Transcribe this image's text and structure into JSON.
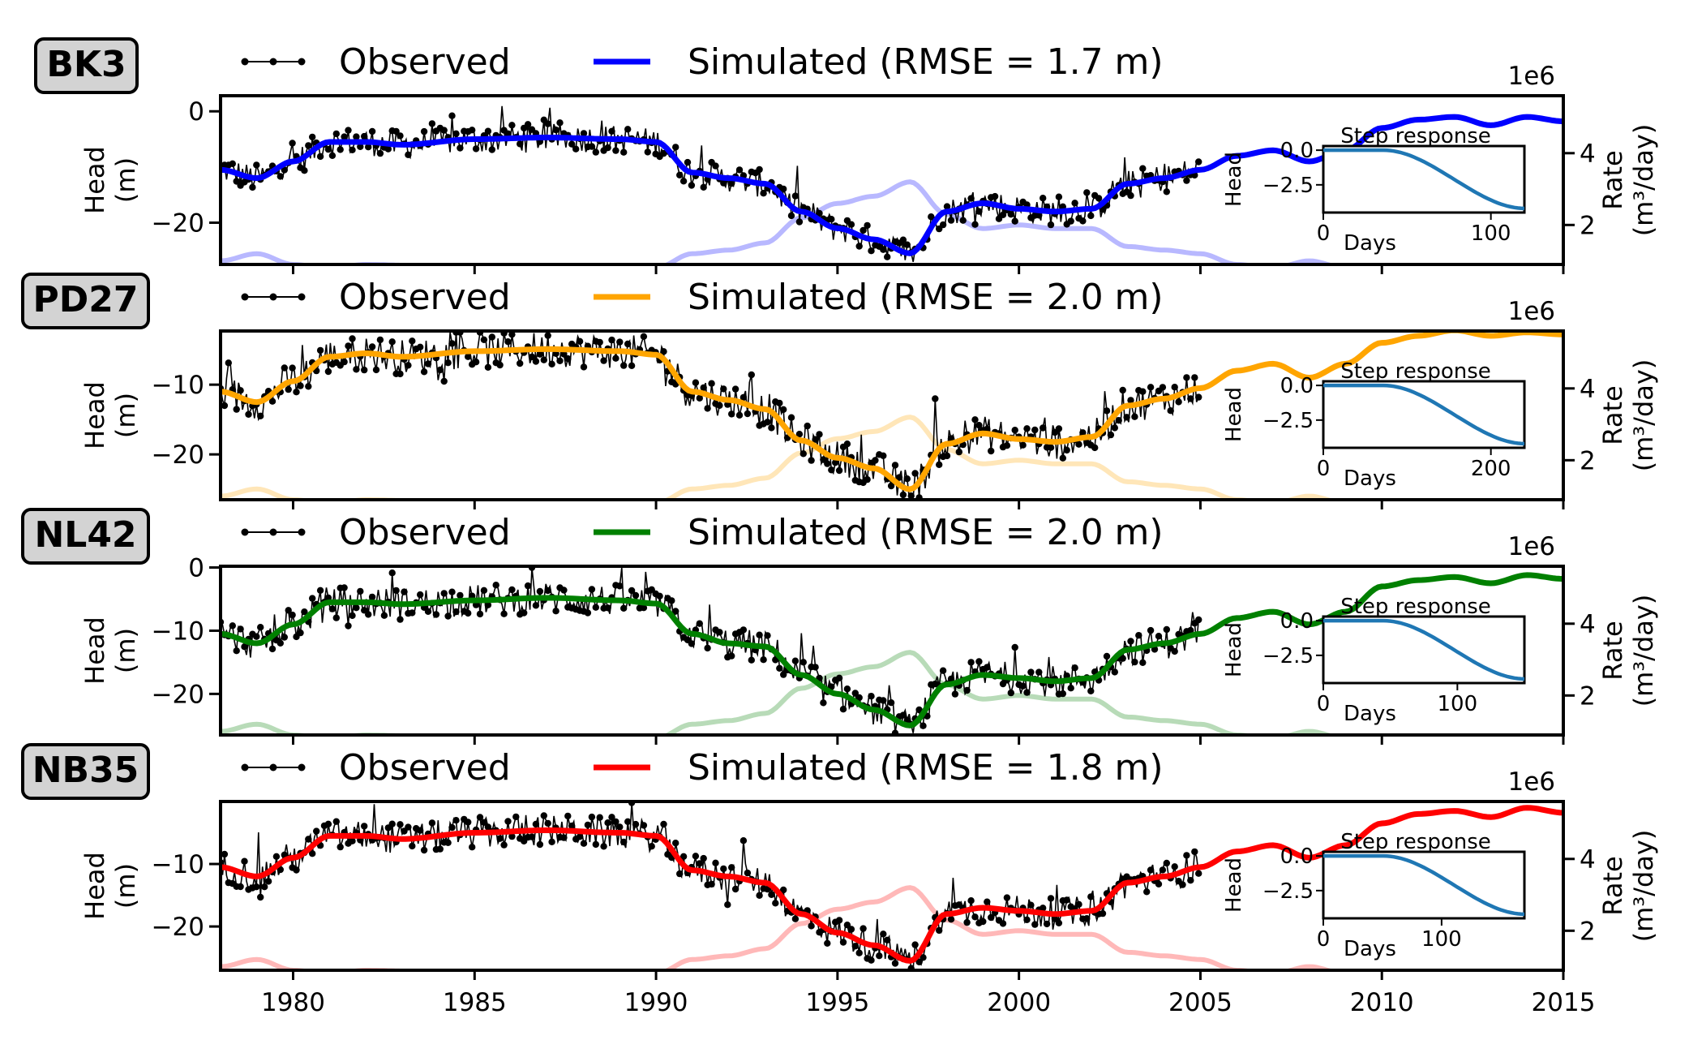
{
  "colors": {
    "observed": "#000000",
    "inset_line": "#1f77b4",
    "badge_fill": "#d3d3d3"
  },
  "legend": {
    "observed_label": "Observed"
  },
  "axes_text": {
    "head_label_line1": "Head",
    "head_label_line2": "(m)",
    "rate_label": "Rate",
    "rate_unit": "(m³/day)",
    "rate_multiplier": "1e6",
    "inset_title": "Step response",
    "inset_ylabel": "Head",
    "inset_xlabel": "Days"
  },
  "chart_data": [
    {
      "type": "line",
      "well": "BK3",
      "color": "#0000ff",
      "rmse_label": "Simulated (RMSE = 1.7 m)",
      "xlim": [
        1978,
        2015
      ],
      "ylim": [
        -27.5,
        2.8
      ],
      "yticks": [
        {
          "v": 0,
          "label": "0"
        },
        {
          "v": -20,
          "label": "−20"
        }
      ],
      "rate_lim": [
        0.9,
        5.6
      ],
      "rate_ticks": [
        2,
        4
      ],
      "simulated": [
        [
          1978,
          -10.5
        ],
        [
          1979,
          -12
        ],
        [
          1980,
          -9
        ],
        [
          1981,
          -5.5
        ],
        [
          1982,
          -5.5
        ],
        [
          1983,
          -6
        ],
        [
          1985,
          -5
        ],
        [
          1987,
          -4.7
        ],
        [
          1989,
          -5
        ],
        [
          1990,
          -5.5
        ],
        [
          1991,
          -11
        ],
        [
          1992,
          -12
        ],
        [
          1993,
          -13
        ],
        [
          1994,
          -18
        ],
        [
          1995,
          -21
        ],
        [
          1996,
          -23
        ],
        [
          1997,
          -25.5
        ],
        [
          1998,
          -18
        ],
        [
          1999,
          -16.5
        ],
        [
          2000,
          -17.5
        ],
        [
          2001,
          -18
        ],
        [
          2002,
          -17.5
        ],
        [
          2003,
          -13
        ],
        [
          2004,
          -12
        ],
        [
          2005,
          -10.5
        ],
        [
          2006,
          -8
        ],
        [
          2007,
          -7
        ],
        [
          2008,
          -9
        ],
        [
          2009,
          -7
        ],
        [
          2010,
          -3
        ],
        [
          2011,
          -1.5
        ],
        [
          2012,
          -1
        ],
        [
          2013,
          -2.5
        ],
        [
          2014,
          -1
        ],
        [
          2015,
          -1.8
        ]
      ],
      "rate": [
        [
          1978,
          1.0
        ],
        [
          1979,
          1.2
        ],
        [
          1980,
          0.9
        ],
        [
          1981,
          0.8
        ],
        [
          1982,
          0.9
        ],
        [
          1984,
          0.85
        ],
        [
          1986,
          0.8
        ],
        [
          1988,
          0.85
        ],
        [
          1990,
          0.8
        ],
        [
          1991,
          1.2
        ],
        [
          1992,
          1.3
        ],
        [
          1993,
          1.5
        ],
        [
          1994,
          2.2
        ],
        [
          1995,
          2.6
        ],
        [
          1996,
          2.8
        ],
        [
          1997,
          3.2
        ],
        [
          1998,
          2.3
        ],
        [
          1999,
          1.9
        ],
        [
          2000,
          2.0
        ],
        [
          2001,
          1.9
        ],
        [
          2002,
          1.9
        ],
        [
          2003,
          1.4
        ],
        [
          2004,
          1.3
        ],
        [
          2005,
          1.2
        ],
        [
          2006,
          0.9
        ],
        [
          2007,
          0.8
        ],
        [
          2008,
          1.0
        ],
        [
          2009,
          0.8
        ],
        [
          2010,
          0.5
        ],
        [
          2011,
          0.5
        ],
        [
          2012,
          0.6
        ],
        [
          2013,
          0.5
        ],
        [
          2014,
          0.4
        ],
        [
          2015,
          0.5
        ]
      ],
      "inset": {
        "xmax": 120,
        "xticks": [
          {
            "v": 0,
            "label": "0"
          },
          {
            "v": 100,
            "label": "100"
          }
        ],
        "yticks": [
          {
            "v": 0,
            "label": "0.0"
          },
          {
            "v": -2.5,
            "label": "−2.5"
          }
        ],
        "ymin": -4.5,
        "ymax": 0.3,
        "final": -4.2
      }
    },
    {
      "type": "line",
      "well": "PD27",
      "color": "#ffa500",
      "rmse_label": "Simulated (RMSE = 2.0 m)",
      "xlim": [
        1978,
        2015
      ],
      "ylim": [
        -26.5,
        -2.3
      ],
      "yticks": [
        {
          "v": -10,
          "label": "−10"
        },
        {
          "v": -20,
          "label": "−20"
        }
      ],
      "rate_lim": [
        0.9,
        5.6
      ],
      "rate_ticks": [
        2,
        4
      ],
      "simulated": [
        [
          1978,
          -11
        ],
        [
          1979,
          -12.5
        ],
        [
          1980,
          -9.5
        ],
        [
          1981,
          -6
        ],
        [
          1982,
          -5.5
        ],
        [
          1983,
          -6
        ],
        [
          1985,
          -5.2
        ],
        [
          1987,
          -4.9
        ],
        [
          1989,
          -5.2
        ],
        [
          1990,
          -5.7
        ],
        [
          1991,
          -11
        ],
        [
          1992,
          -12.2
        ],
        [
          1993,
          -13.5
        ],
        [
          1994,
          -18
        ],
        [
          1995,
          -20.5
        ],
        [
          1996,
          -22
        ],
        [
          1997,
          -25
        ],
        [
          1998,
          -18.5
        ],
        [
          1999,
          -17
        ],
        [
          2000,
          -17.8
        ],
        [
          2001,
          -18.2
        ],
        [
          2002,
          -17.5
        ],
        [
          2003,
          -13
        ],
        [
          2004,
          -12
        ],
        [
          2005,
          -10.5
        ],
        [
          2006,
          -8
        ],
        [
          2007,
          -7
        ],
        [
          2008,
          -9
        ],
        [
          2009,
          -7
        ],
        [
          2010,
          -4
        ],
        [
          2011,
          -3
        ],
        [
          2012,
          -2.2
        ],
        [
          2013,
          -3
        ],
        [
          2014,
          -2.5
        ],
        [
          2015,
          -2.8
        ]
      ],
      "rate": [
        [
          1978,
          1.0
        ],
        [
          1979,
          1.2
        ],
        [
          1980,
          0.9
        ],
        [
          1981,
          0.8
        ],
        [
          1982,
          0.9
        ],
        [
          1984,
          0.85
        ],
        [
          1986,
          0.8
        ],
        [
          1988,
          0.85
        ],
        [
          1990,
          0.8
        ],
        [
          1991,
          1.2
        ],
        [
          1992,
          1.3
        ],
        [
          1993,
          1.5
        ],
        [
          1994,
          2.2
        ],
        [
          1995,
          2.6
        ],
        [
          1996,
          2.8
        ],
        [
          1997,
          3.2
        ],
        [
          1998,
          2.3
        ],
        [
          1999,
          1.9
        ],
        [
          2000,
          2.0
        ],
        [
          2001,
          1.9
        ],
        [
          2002,
          1.9
        ],
        [
          2003,
          1.4
        ],
        [
          2004,
          1.3
        ],
        [
          2005,
          1.2
        ],
        [
          2006,
          0.9
        ],
        [
          2007,
          0.8
        ],
        [
          2008,
          1.0
        ],
        [
          2009,
          0.8
        ],
        [
          2010,
          0.5
        ],
        [
          2011,
          0.5
        ],
        [
          2012,
          0.6
        ],
        [
          2013,
          0.5
        ],
        [
          2014,
          0.4
        ],
        [
          2015,
          0.5
        ]
      ],
      "inset": {
        "xmax": 240,
        "xticks": [
          {
            "v": 0,
            "label": "0"
          },
          {
            "v": 200,
            "label": "200"
          }
        ],
        "yticks": [
          {
            "v": 0,
            "label": "0.0"
          },
          {
            "v": -2.5,
            "label": "−2.5"
          }
        ],
        "ymin": -4.5,
        "ymax": 0.3,
        "final": -4.2
      }
    },
    {
      "type": "line",
      "well": "NL42",
      "color": "#008000",
      "rmse_label": "Simulated (RMSE = 2.0 m)",
      "xlim": [
        1978,
        2015
      ],
      "ylim": [
        -26.5,
        0.2
      ],
      "yticks": [
        {
          "v": 0,
          "label": "0"
        },
        {
          "v": -10,
          "label": "−10"
        },
        {
          "v": -20,
          "label": "−20"
        }
      ],
      "rate_lim": [
        0.9,
        5.6
      ],
      "rate_ticks": [
        2,
        4
      ],
      "simulated": [
        [
          1978,
          -10.5
        ],
        [
          1979,
          -12
        ],
        [
          1980,
          -9
        ],
        [
          1981,
          -5.5
        ],
        [
          1982,
          -5.5
        ],
        [
          1983,
          -5.8
        ],
        [
          1985,
          -5.2
        ],
        [
          1987,
          -4.8
        ],
        [
          1989,
          -5.2
        ],
        [
          1990,
          -5.7
        ],
        [
          1991,
          -10.5
        ],
        [
          1992,
          -12
        ],
        [
          1993,
          -12.5
        ],
        [
          1994,
          -17
        ],
        [
          1995,
          -20
        ],
        [
          1996,
          -22.5
        ],
        [
          1997,
          -25
        ],
        [
          1998,
          -18.5
        ],
        [
          1999,
          -17
        ],
        [
          2000,
          -17.5
        ],
        [
          2001,
          -18
        ],
        [
          2002,
          -17.5
        ],
        [
          2003,
          -13
        ],
        [
          2004,
          -12
        ],
        [
          2005,
          -10.5
        ],
        [
          2006,
          -8
        ],
        [
          2007,
          -7
        ],
        [
          2008,
          -9
        ],
        [
          2009,
          -7
        ],
        [
          2010,
          -3
        ],
        [
          2011,
          -2
        ],
        [
          2012,
          -1.5
        ],
        [
          2013,
          -2.5
        ],
        [
          2014,
          -1.2
        ],
        [
          2015,
          -1.8
        ]
      ],
      "rate": [
        [
          1978,
          1.0
        ],
        [
          1979,
          1.2
        ],
        [
          1980,
          0.9
        ],
        [
          1981,
          0.8
        ],
        [
          1982,
          0.9
        ],
        [
          1984,
          0.85
        ],
        [
          1986,
          0.8
        ],
        [
          1988,
          0.85
        ],
        [
          1990,
          0.8
        ],
        [
          1991,
          1.2
        ],
        [
          1992,
          1.3
        ],
        [
          1993,
          1.5
        ],
        [
          1994,
          2.2
        ],
        [
          1995,
          2.6
        ],
        [
          1996,
          2.8
        ],
        [
          1997,
          3.2
        ],
        [
          1998,
          2.3
        ],
        [
          1999,
          1.9
        ],
        [
          2000,
          2.0
        ],
        [
          2001,
          1.9
        ],
        [
          2002,
          1.9
        ],
        [
          2003,
          1.4
        ],
        [
          2004,
          1.3
        ],
        [
          2005,
          1.2
        ],
        [
          2006,
          0.9
        ],
        [
          2007,
          0.8
        ],
        [
          2008,
          1.0
        ],
        [
          2009,
          0.8
        ],
        [
          2010,
          0.5
        ],
        [
          2011,
          0.5
        ],
        [
          2012,
          0.6
        ],
        [
          2013,
          0.5
        ],
        [
          2014,
          0.4
        ],
        [
          2015,
          0.5
        ]
      ],
      "inset": {
        "xmax": 150,
        "xticks": [
          {
            "v": 0,
            "label": "0"
          },
          {
            "v": 100,
            "label": "100"
          }
        ],
        "yticks": [
          {
            "v": 0,
            "label": "0.0"
          },
          {
            "v": -2.5,
            "label": "−2.5"
          }
        ],
        "ymin": -4.5,
        "ymax": 0.3,
        "final": -4.2
      }
    },
    {
      "type": "line",
      "well": "NB35",
      "color": "#ff0000",
      "rmse_label": "Simulated (RMSE = 1.8 m)",
      "xlim": [
        1978,
        2015
      ],
      "ylim": [
        -27.0,
        0.0
      ],
      "yticks": [
        {
          "v": -10,
          "label": "−10"
        },
        {
          "v": -20,
          "label": "−20"
        }
      ],
      "rate_lim": [
        0.9,
        5.6
      ],
      "rate_ticks": [
        2,
        4
      ],
      "simulated": [
        [
          1978,
          -10.5
        ],
        [
          1979,
          -12
        ],
        [
          1980,
          -9
        ],
        [
          1981,
          -5.5
        ],
        [
          1982,
          -5.5
        ],
        [
          1983,
          -6
        ],
        [
          1985,
          -5
        ],
        [
          1987,
          -4.6
        ],
        [
          1989,
          -5
        ],
        [
          1990,
          -5.5
        ],
        [
          1991,
          -11
        ],
        [
          1992,
          -12
        ],
        [
          1993,
          -13
        ],
        [
          1994,
          -18
        ],
        [
          1995,
          -21
        ],
        [
          1996,
          -23
        ],
        [
          1997,
          -25.5
        ],
        [
          1998,
          -18
        ],
        [
          1999,
          -17
        ],
        [
          2000,
          -17.5
        ],
        [
          2001,
          -18
        ],
        [
          2002,
          -17.5
        ],
        [
          2003,
          -13
        ],
        [
          2004,
          -12
        ],
        [
          2005,
          -10.5
        ],
        [
          2006,
          -8
        ],
        [
          2007,
          -7
        ],
        [
          2008,
          -9
        ],
        [
          2009,
          -7
        ],
        [
          2010,
          -3.5
        ],
        [
          2011,
          -2
        ],
        [
          2012,
          -1.5
        ],
        [
          2013,
          -2.5
        ],
        [
          2014,
          -1
        ],
        [
          2015,
          -1.8
        ]
      ],
      "rate": [
        [
          1978,
          1.0
        ],
        [
          1979,
          1.2
        ],
        [
          1980,
          0.9
        ],
        [
          1981,
          0.8
        ],
        [
          1982,
          0.9
        ],
        [
          1984,
          0.85
        ],
        [
          1986,
          0.8
        ],
        [
          1988,
          0.85
        ],
        [
          1990,
          0.8
        ],
        [
          1991,
          1.2
        ],
        [
          1992,
          1.3
        ],
        [
          1993,
          1.5
        ],
        [
          1994,
          2.2
        ],
        [
          1995,
          2.6
        ],
        [
          1996,
          2.8
        ],
        [
          1997,
          3.2
        ],
        [
          1998,
          2.3
        ],
        [
          1999,
          1.9
        ],
        [
          2000,
          2.0
        ],
        [
          2001,
          1.9
        ],
        [
          2002,
          1.9
        ],
        [
          2003,
          1.4
        ],
        [
          2004,
          1.3
        ],
        [
          2005,
          1.2
        ],
        [
          2006,
          0.9
        ],
        [
          2007,
          0.8
        ],
        [
          2008,
          1.0
        ],
        [
          2009,
          0.8
        ],
        [
          2010,
          0.5
        ],
        [
          2011,
          0.5
        ],
        [
          2012,
          0.6
        ],
        [
          2013,
          0.5
        ],
        [
          2014,
          0.4
        ],
        [
          2015,
          0.5
        ]
      ],
      "inset": {
        "xmax": 170,
        "xticks": [
          {
            "v": 0,
            "label": "0"
          },
          {
            "v": 100,
            "label": "100"
          }
        ],
        "yticks": [
          {
            "v": 0,
            "label": "0.0"
          },
          {
            "v": -2.5,
            "label": "−2.5"
          }
        ],
        "ymin": -4.5,
        "ymax": 0.3,
        "final": -4.2
      }
    }
  ],
  "x_axis": {
    "ticks": [
      {
        "v": 1980,
        "label": "1980"
      },
      {
        "v": 1985,
        "label": "1985"
      },
      {
        "v": 1990,
        "label": "1990"
      },
      {
        "v": 1995,
        "label": "1995"
      },
      {
        "v": 2000,
        "label": "2000"
      },
      {
        "v": 2005,
        "label": "2005"
      },
      {
        "v": 2010,
        "label": "2010"
      },
      {
        "v": 2015,
        "label": "2015"
      }
    ]
  }
}
